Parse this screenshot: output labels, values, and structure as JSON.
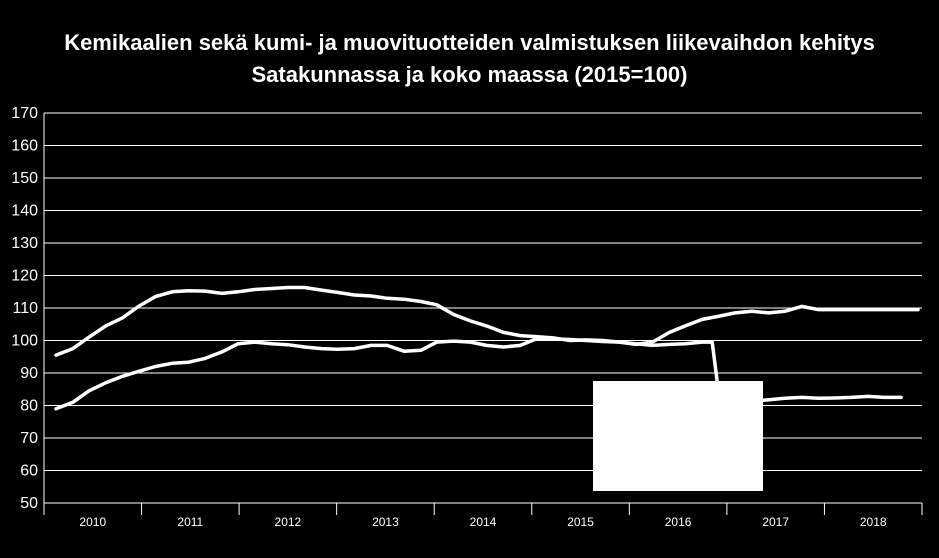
{
  "chart_data": {
    "type": "line",
    "title": "Kemikaalien sekä kumi- ja muovituotteiden valmistuksen liikevaihdon kehitys",
    "subtitle": "Satakunnassa ja koko maassa (2015=100)",
    "xlabel": "",
    "ylabel": "",
    "ylim": [
      50,
      170
    ],
    "yticks": [
      50,
      60,
      70,
      80,
      90,
      100,
      110,
      120,
      130,
      140,
      150,
      160,
      170
    ],
    "xlim": [
      2010,
      2018.67
    ],
    "x_tick_labels": [
      "2010",
      "2011",
      "2012",
      "2013",
      "2014",
      "2015",
      "2016",
      "2017",
      "2018"
    ],
    "grid": true,
    "legend": "none",
    "colors": {
      "background": "#000000",
      "lines": "#ffffff",
      "grid": "#ffffff",
      "box": "#ffffff"
    },
    "series": [
      {
        "x": [
          2010.0,
          2010.17,
          2010.33,
          2010.5,
          2010.67,
          2010.83,
          2011.0,
          2011.17,
          2011.33,
          2011.5,
          2011.67,
          2011.83,
          2012.0,
          2012.17,
          2012.33,
          2012.5,
          2012.67,
          2012.83,
          2013.0,
          2013.17,
          2013.33,
          2013.5,
          2013.67,
          2013.83,
          2014.0,
          2014.17,
          2014.33,
          2014.5,
          2014.67,
          2014.83,
          2015.0,
          2015.17,
          2015.33,
          2015.5,
          2015.67,
          2015.83,
          2016.0,
          2016.17,
          2016.33,
          2016.5,
          2016.67,
          2016.83,
          2017.0,
          2017.17,
          2017.33,
          2017.5,
          2017.67,
          2017.83,
          2018.0,
          2018.17,
          2018.33,
          2018.5,
          2018.67
        ],
        "values": [
          95.5,
          97.5,
          101,
          104.5,
          107,
          110.5,
          113.5,
          115,
          115.3,
          115.2,
          114.5,
          115,
          115.7,
          116,
          116.3,
          116.3,
          115.5,
          114.8,
          114,
          113.7,
          113,
          112.7,
          112,
          111,
          108,
          106,
          104.5,
          102.5,
          101.5,
          101.2,
          100.8,
          100,
          100.2,
          100,
          99.5,
          98.8,
          99.5,
          102.5,
          104.5,
          106.5,
          107.5,
          108.5,
          109,
          108.5,
          109,
          110.5,
          109.5,
          109.5,
          109.5,
          109.5,
          109.5,
          109.5,
          109.5
        ]
      },
      {
        "x": [
          2010.0,
          2010.17,
          2010.33,
          2010.5,
          2010.67,
          2010.83,
          2011.0,
          2011.17,
          2011.33,
          2011.5,
          2011.67,
          2011.83,
          2012.0,
          2012.17,
          2012.33,
          2012.5,
          2012.67,
          2012.83,
          2013.0,
          2013.17,
          2013.33,
          2013.5,
          2013.67,
          2013.83,
          2014.0,
          2014.17,
          2014.33,
          2014.5,
          2014.67,
          2014.83,
          2015.0,
          2015.17,
          2015.33,
          2015.5,
          2015.67,
          2015.83,
          2016.0,
          2016.17,
          2016.33,
          2016.5,
          2016.6,
          2016.67,
          2016.83,
          2017.0,
          2017.17,
          2017.33,
          2017.5,
          2017.67,
          2017.83,
          2018.0,
          2018.17,
          2018.33,
          2018.5
        ],
        "values": [
          79,
          81,
          84.5,
          87,
          89,
          90.5,
          92,
          93,
          93.3,
          94.5,
          96.5,
          99,
          99.5,
          99,
          98.7,
          98,
          97.5,
          97.3,
          97.5,
          98.5,
          98.5,
          96.7,
          97,
          99.5,
          99.8,
          99.5,
          98.5,
          98,
          98.5,
          100.5,
          100.5,
          100.3,
          100,
          99.7,
          99.5,
          99,
          98.5,
          98.8,
          99,
          99.5,
          99.5,
          82.5,
          81.5,
          81.3,
          81.8,
          82.2,
          82.5,
          82.2,
          82.3,
          82.5,
          82.8,
          82.5,
          82.5
        ]
      }
    ]
  }
}
